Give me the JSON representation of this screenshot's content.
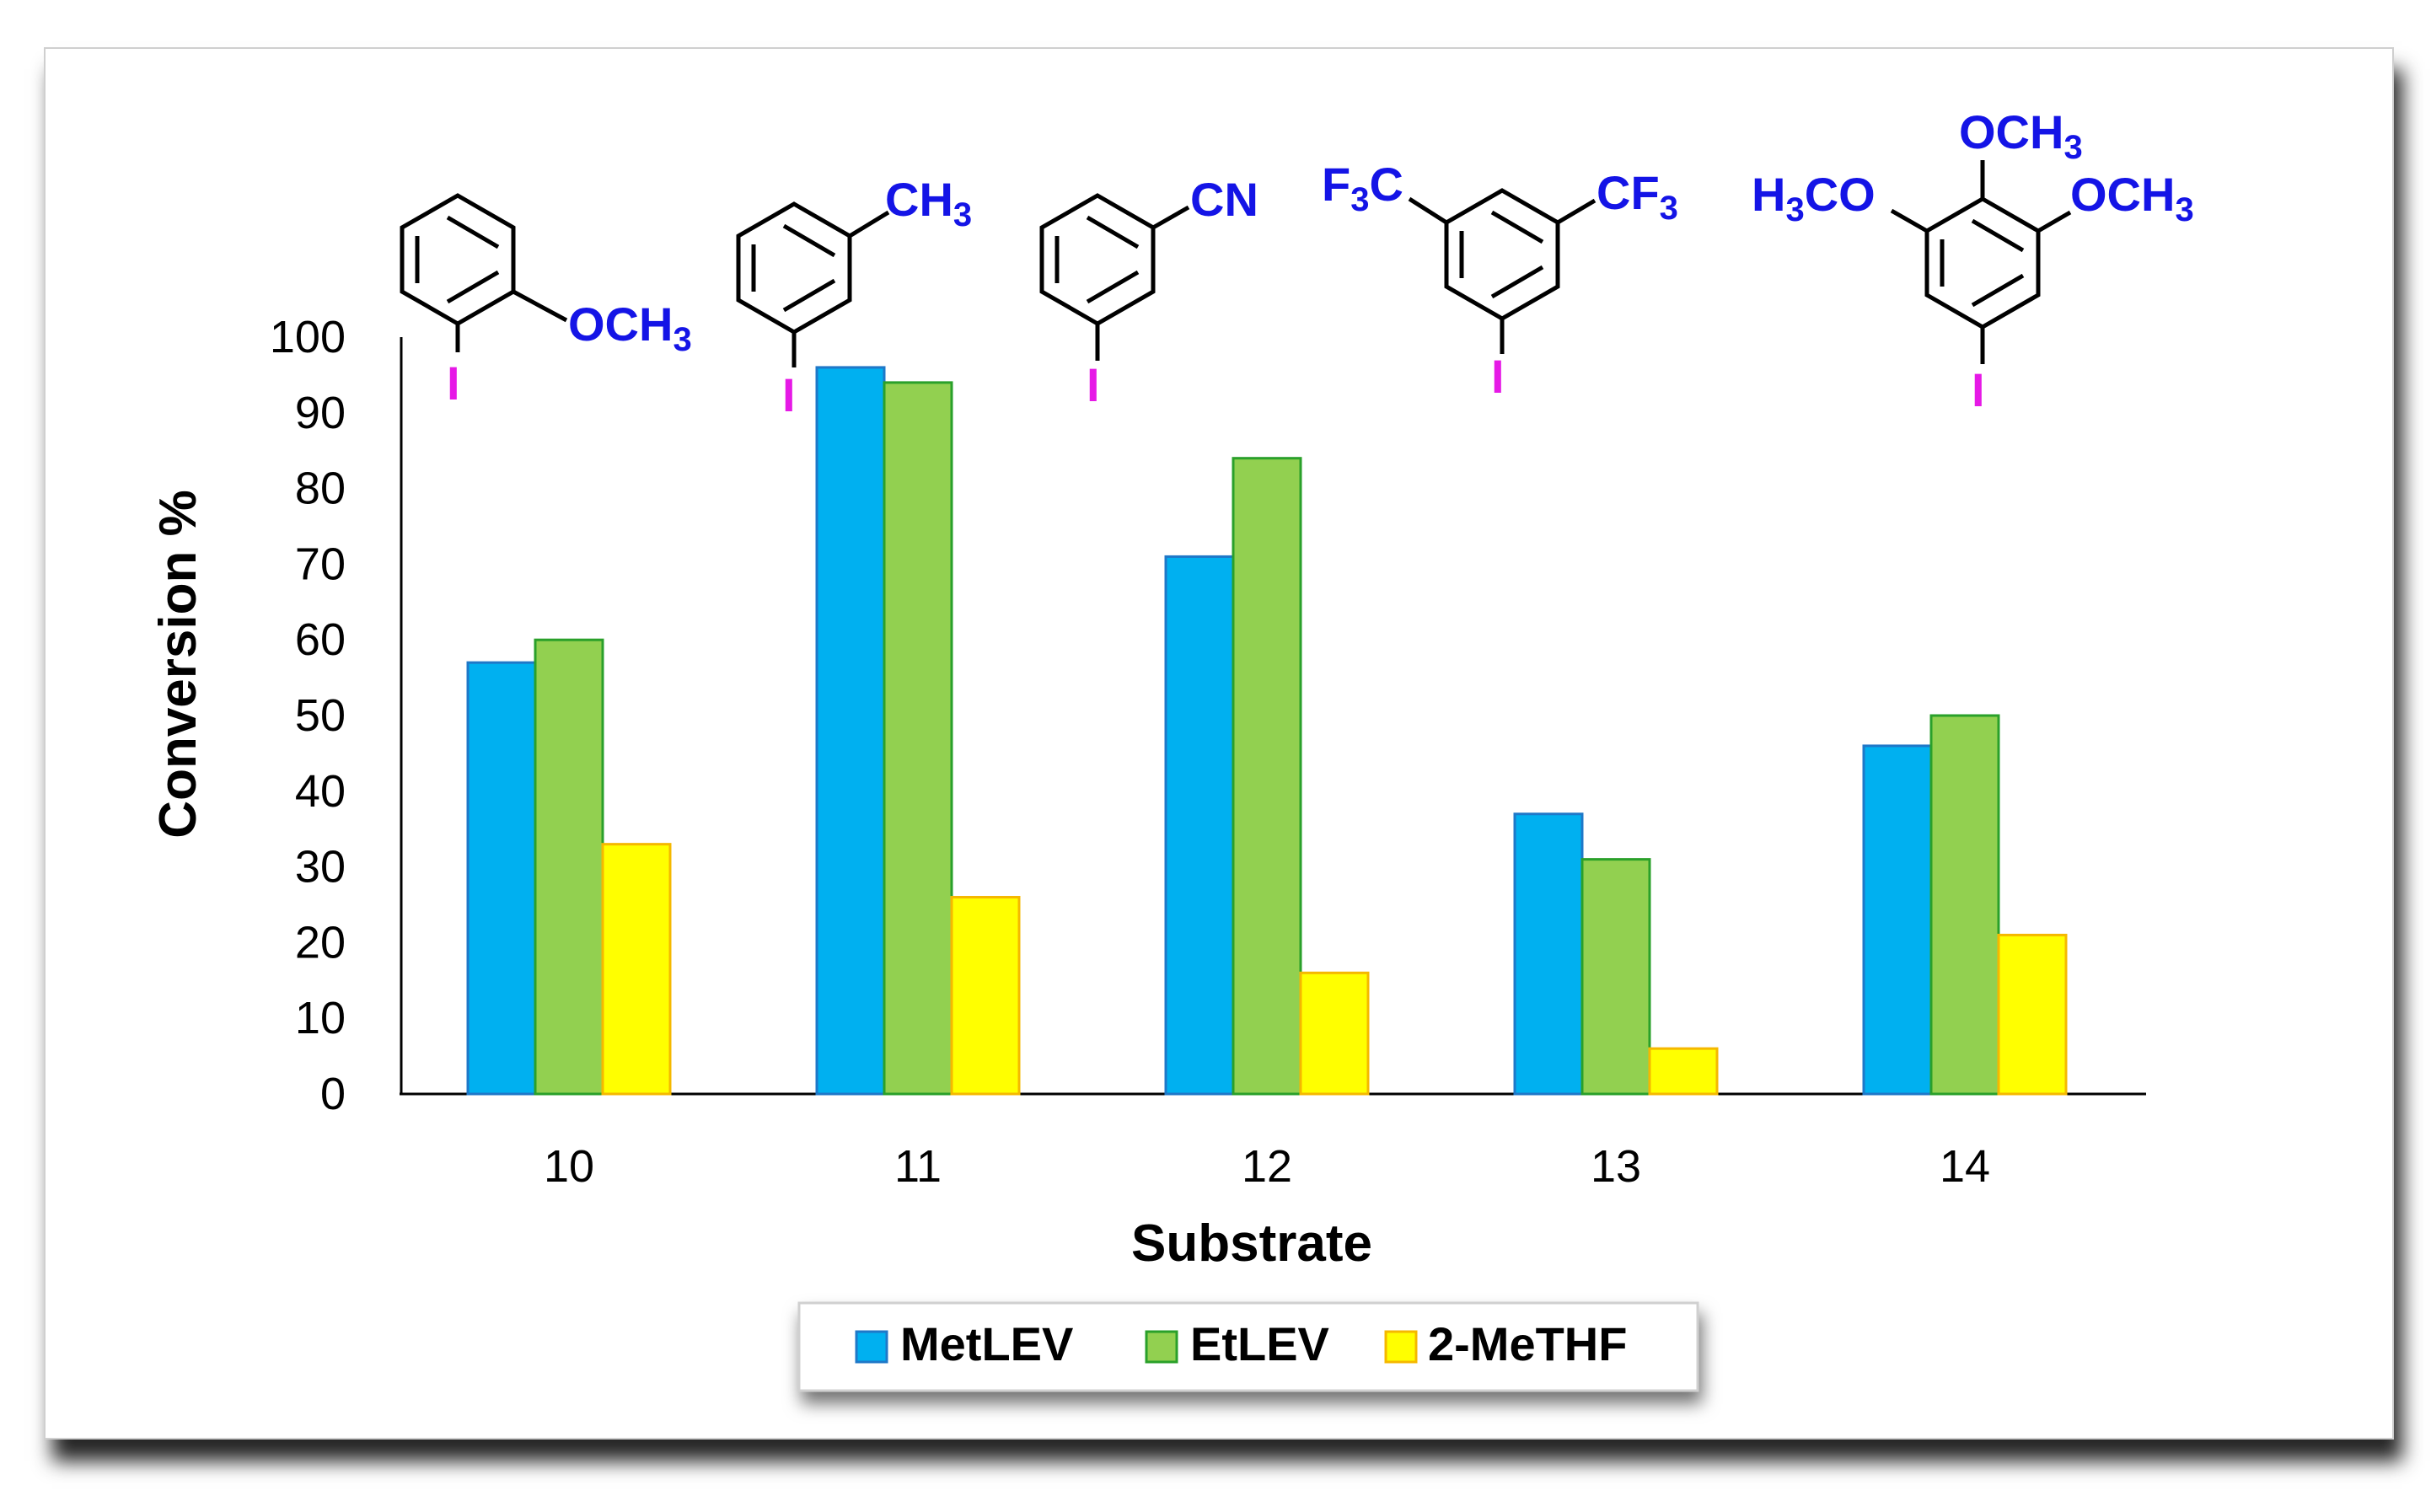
{
  "chart_data": {
    "type": "bar",
    "categories": [
      "10",
      "11",
      "12",
      "13",
      "14"
    ],
    "series": [
      {
        "name": "MetLEV",
        "values": [
          57,
          96,
          71,
          37,
          46
        ],
        "color": "#00B0F0",
        "stroke": "#1f78c8"
      },
      {
        "name": "EtLEV",
        "values": [
          60,
          94,
          84,
          31,
          50
        ],
        "color": "#92D050",
        "stroke": "#2aa02a"
      },
      {
        "name": "2-MeTHF",
        "values": [
          33,
          26,
          16,
          6,
          21
        ],
        "color": "#FFFF00",
        "stroke": "#f5b800"
      }
    ],
    "xlabel": "Substrate",
    "ylabel": "Conversion %",
    "ylim": [
      0,
      100
    ],
    "yticks": [
      0,
      10,
      20,
      30,
      40,
      50,
      60,
      70,
      80,
      90,
      100
    ],
    "grid": false,
    "legend_position": "bottom-center"
  },
  "molecules": {
    "m10": {
      "sub": "OCH3",
      "iodo": "I"
    },
    "m11": {
      "sub": "CH3",
      "iodo": "I"
    },
    "m12": {
      "sub": "CN",
      "iodo": "I"
    },
    "m13": {
      "left": "F3C",
      "right": "CF3",
      "iodo": "I"
    },
    "m14": {
      "left": "H3CO",
      "top": "OCH3",
      "right": "OCH3",
      "iodo": "I"
    }
  }
}
